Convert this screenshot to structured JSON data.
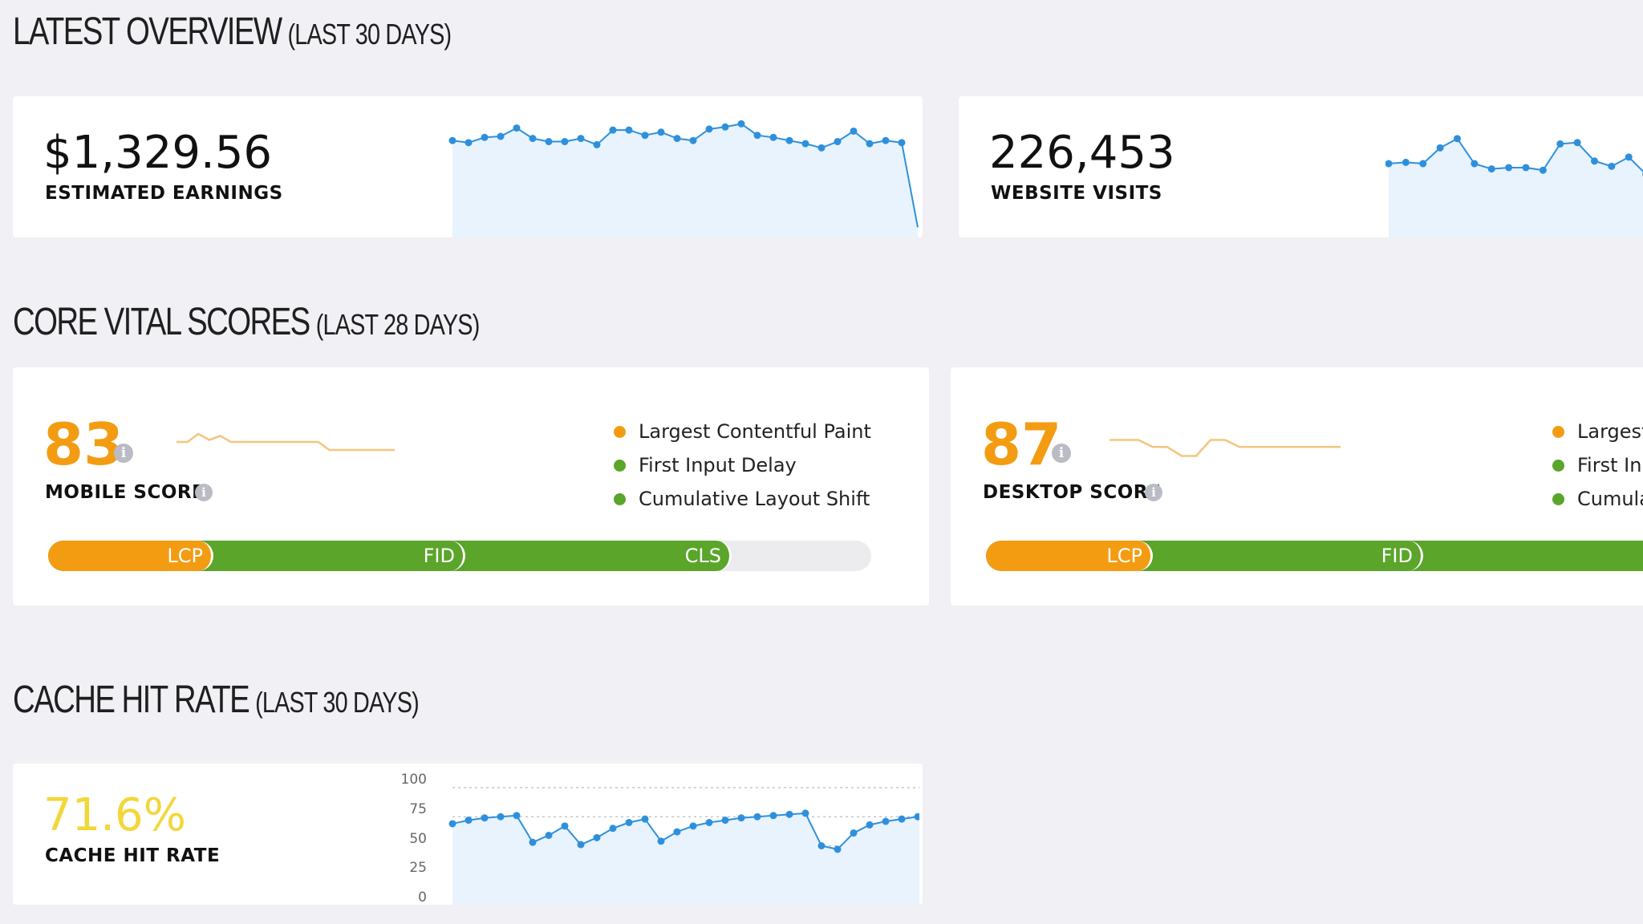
{
  "colors": {
    "orange": "#f39c12",
    "green": "#5aa52a",
    "line_blue": "#2e90dc",
    "fill_blue": "#e8f3fd",
    "yellow": "#f3d63a",
    "bar_track": "#ececef"
  },
  "overview": {
    "title": "LATEST OVERVIEW",
    "subtitle": "(LAST 30 DAYS)",
    "earnings": {
      "value": "$1,329.56",
      "label": "ESTIMATED EARNINGS"
    },
    "visits": {
      "value": "226,453",
      "label": "WEBSITE VISITS"
    }
  },
  "core_vitals": {
    "title": "CORE VITAL SCORES",
    "subtitle": "(LAST 28 DAYS)",
    "mobile": {
      "score": "83",
      "label": "MOBILE SCORE",
      "info_icon": "i",
      "legend": [
        {
          "text": "Largest Contentful Paint",
          "color": "#f39c12"
        },
        {
          "text": "First Input Delay",
          "color": "#5aa52a"
        },
        {
          "text": "Cumulative Layout Shift",
          "color": "#5aa52a"
        }
      ],
      "bar": [
        {
          "label": "LCP",
          "color": "#f39c12"
        },
        {
          "label": "FID",
          "color": "#5aa52a"
        },
        {
          "label": "CLS",
          "color": "#5aa52a"
        }
      ]
    },
    "desktop": {
      "score": "87",
      "label": "DESKTOP SCORE",
      "info_icon": "i",
      "legend": [
        {
          "text": "Largest",
          "color": "#f39c12"
        },
        {
          "text": "First Inp",
          "color": "#5aa52a"
        },
        {
          "text": "Cumula",
          "color": "#5aa52a"
        }
      ],
      "bar": [
        {
          "label": "LCP",
          "color": "#f39c12"
        },
        {
          "label": "FID",
          "color": "#5aa52a"
        }
      ]
    }
  },
  "cache": {
    "title": "CACHE HIT RATE",
    "subtitle": "(LAST 30 DAYS)",
    "value": "71.6%",
    "label": "CACHE HIT RATE"
  },
  "chart_data": [
    {
      "type": "area",
      "values": [
        48,
        46,
        51,
        52,
        60,
        50,
        47,
        47,
        50,
        44,
        58,
        58,
        53,
        56,
        50,
        48,
        59,
        61,
        64,
        53,
        51,
        48,
        45,
        41,
        47,
        57,
        45,
        48,
        46,
        -35
      ],
      "ylim": [
        -40,
        75
      ]
    },
    {
      "type": "area",
      "values": [
        36,
        37,
        36,
        48,
        55,
        36,
        32,
        33,
        33,
        31,
        51,
        52,
        38,
        34,
        41,
        28
      ],
      "ylim": [
        -20,
        75
      ]
    },
    {
      "type": "line",
      "values": [
        50,
        50,
        58,
        52,
        56,
        50,
        50,
        50,
        50,
        50,
        50,
        50,
        50,
        50,
        42,
        42,
        42,
        42,
        42,
        42,
        42
      ],
      "ylim": [
        30,
        70
      ]
    },
    {
      "type": "line",
      "values": [
        52,
        52,
        52,
        45,
        45,
        36,
        36,
        52,
        52,
        45,
        45,
        45,
        45,
        45,
        45,
        45,
        45
      ],
      "ylim": [
        30,
        70
      ]
    },
    {
      "type": "area",
      "ylim": [
        0,
        100
      ],
      "yticks": [
        "100",
        "75",
        "50",
        "25",
        "0"
      ],
      "values": [
        69,
        72,
        74,
        75,
        76,
        53,
        59,
        67,
        51,
        57,
        65,
        70,
        73,
        54,
        62,
        67,
        70,
        72,
        74,
        75,
        76,
        77,
        78,
        50,
        47,
        61,
        68,
        71,
        73,
        75,
        76
      ]
    }
  ]
}
